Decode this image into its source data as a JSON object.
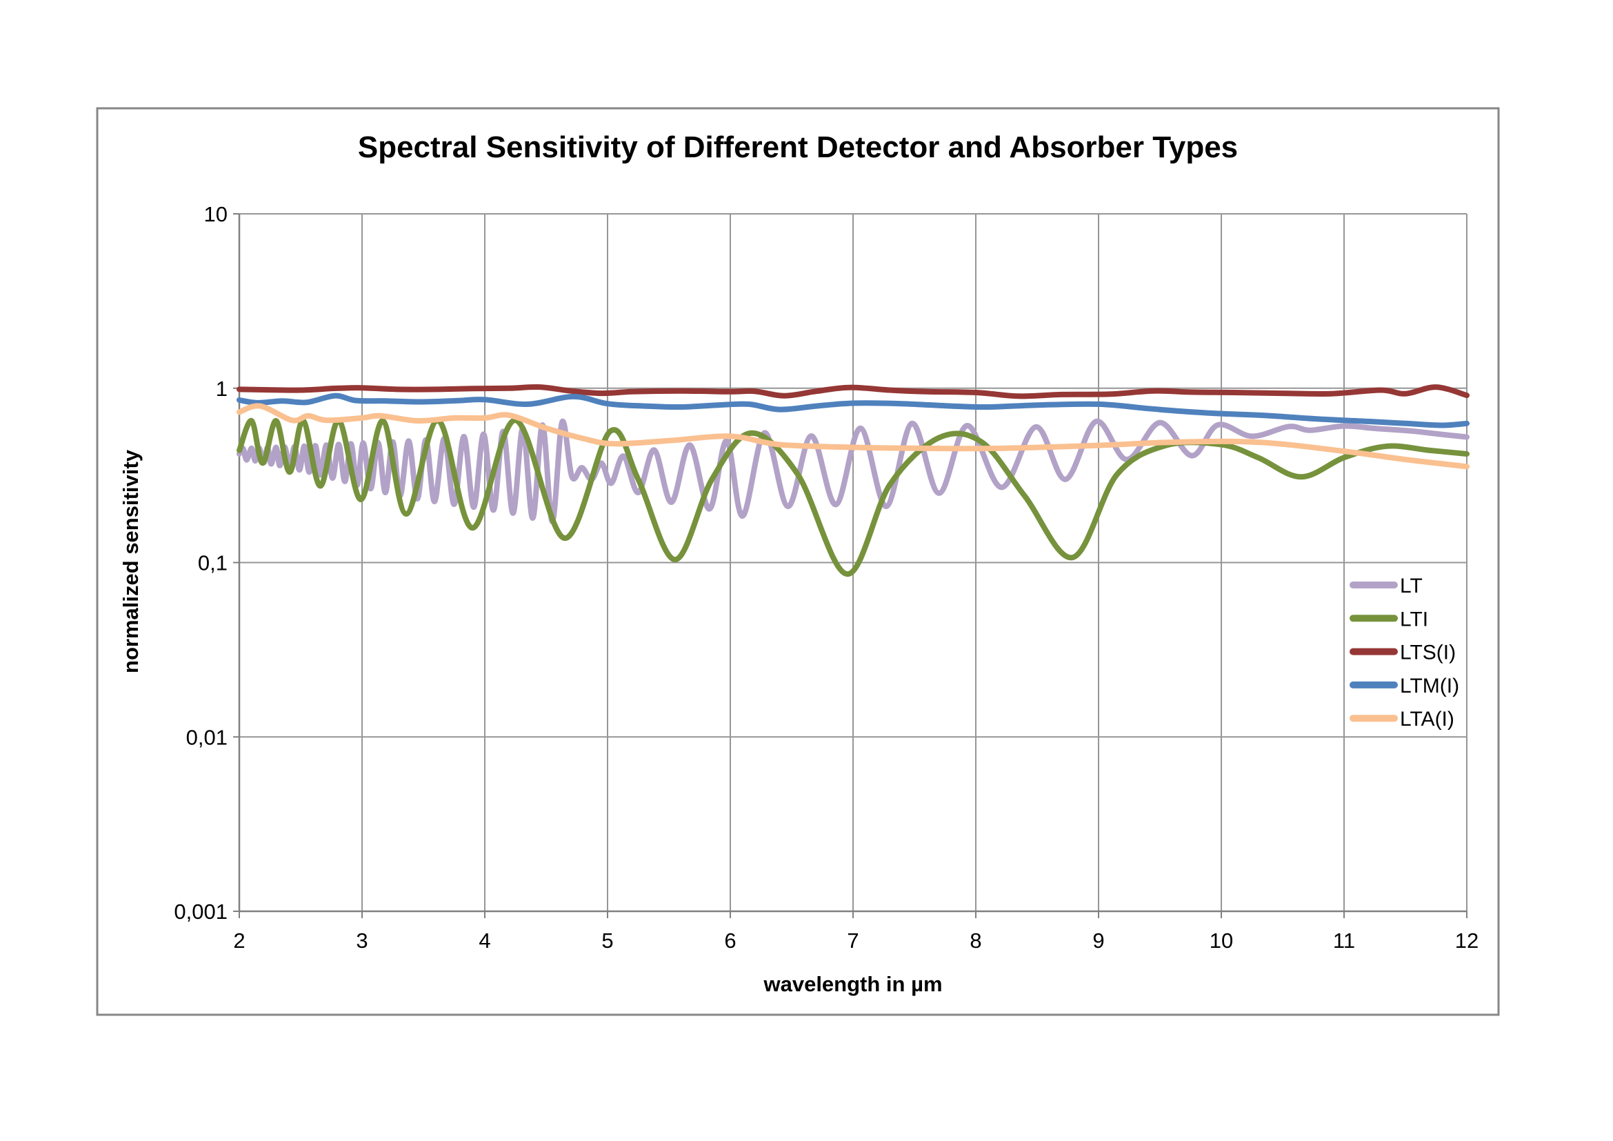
{
  "chart_data": {
    "type": "line",
    "title": "Spectral Sensitivity of Different Detector and Absorber Types",
    "xlabel": "wavelength in µm",
    "ylabel": "normalized sensitivity",
    "grid": true,
    "legend_position": "right-inside",
    "x_axis": {
      "min": 2,
      "max": 12,
      "ticks": [
        {
          "value": 2,
          "label": "2"
        },
        {
          "value": 3,
          "label": "3"
        },
        {
          "value": 4,
          "label": "4"
        },
        {
          "value": 5,
          "label": "5"
        },
        {
          "value": 6,
          "label": "6"
        },
        {
          "value": 7,
          "label": "7"
        },
        {
          "value": 8,
          "label": "8"
        },
        {
          "value": 9,
          "label": "9"
        },
        {
          "value": 10,
          "label": "10"
        },
        {
          "value": 11,
          "label": "11"
        },
        {
          "value": 12,
          "label": "12"
        }
      ]
    },
    "y_axis": {
      "scale": "log",
      "min": 0.001,
      "max": 10,
      "ticks": [
        {
          "value": 10,
          "label": "10"
        },
        {
          "value": 1,
          "label": "1"
        },
        {
          "value": 0.1,
          "label": "0,1"
        },
        {
          "value": 0.01,
          "label": "0,01"
        },
        {
          "value": 0.001,
          "label": "0,001"
        }
      ]
    },
    "colors": {
      "gridline": "#969696",
      "axis": "#808080",
      "border": "#878787",
      "text": "#000000"
    },
    "series": [
      {
        "name": "LT",
        "color": "#B2A2C7",
        "points": [
          [
            2.0,
            0.42
          ],
          [
            2.03,
            0.452
          ],
          [
            2.06,
            0.388
          ],
          [
            2.1,
            0.453
          ],
          [
            2.13,
            0.383
          ],
          [
            2.16,
            0.455
          ],
          [
            2.2,
            0.375
          ],
          [
            2.23,
            0.456
          ],
          [
            2.26,
            0.368
          ],
          [
            2.3,
            0.458
          ],
          [
            2.33,
            0.36
          ],
          [
            2.37,
            0.46
          ],
          [
            2.41,
            0.35
          ],
          [
            2.45,
            0.462
          ],
          [
            2.49,
            0.34
          ],
          [
            2.53,
            0.465
          ],
          [
            2.57,
            0.33
          ],
          [
            2.62,
            0.468
          ],
          [
            2.66,
            0.318
          ],
          [
            2.71,
            0.472
          ],
          [
            2.76,
            0.305
          ],
          [
            2.81,
            0.476
          ],
          [
            2.86,
            0.292
          ],
          [
            2.91,
            0.48
          ],
          [
            2.96,
            0.278
          ],
          [
            3.01,
            0.485
          ],
          [
            3.07,
            0.265
          ],
          [
            3.13,
            0.488
          ],
          [
            3.19,
            0.252
          ],
          [
            3.25,
            0.492
          ],
          [
            3.31,
            0.242
          ],
          [
            3.38,
            0.498
          ],
          [
            3.45,
            0.232
          ],
          [
            3.52,
            0.505
          ],
          [
            3.59,
            0.224
          ],
          [
            3.67,
            0.515
          ],
          [
            3.75,
            0.216
          ],
          [
            3.83,
            0.528
          ],
          [
            3.91,
            0.208
          ],
          [
            3.99,
            0.545
          ],
          [
            4.07,
            0.2
          ],
          [
            4.15,
            0.565
          ],
          [
            4.23,
            0.192
          ],
          [
            4.31,
            0.59
          ],
          [
            4.39,
            0.18
          ],
          [
            4.47,
            0.615
          ],
          [
            4.55,
            0.172
          ],
          [
            4.63,
            0.64
          ],
          [
            4.71,
            0.31
          ],
          [
            4.79,
            0.35
          ],
          [
            4.87,
            0.3
          ],
          [
            4.95,
            0.372
          ],
          [
            5.03,
            0.285
          ],
          [
            5.13,
            0.408
          ],
          [
            5.25,
            0.252
          ],
          [
            5.38,
            0.442
          ],
          [
            5.52,
            0.222
          ],
          [
            5.67,
            0.472
          ],
          [
            5.83,
            0.203
          ],
          [
            5.97,
            0.5
          ],
          [
            6.1,
            0.185
          ],
          [
            6.28,
            0.555
          ],
          [
            6.47,
            0.21
          ],
          [
            6.66,
            0.532
          ],
          [
            6.86,
            0.215
          ],
          [
            7.06,
            0.59
          ],
          [
            7.27,
            0.21
          ],
          [
            7.48,
            0.628
          ],
          [
            7.7,
            0.25
          ],
          [
            7.93,
            0.61
          ],
          [
            8.21,
            0.27
          ],
          [
            8.49,
            0.6
          ],
          [
            8.73,
            0.3
          ],
          [
            8.98,
            0.645
          ],
          [
            9.23,
            0.39
          ],
          [
            9.5,
            0.635
          ],
          [
            9.76,
            0.41
          ],
          [
            9.97,
            0.615
          ],
          [
            10.25,
            0.53
          ],
          [
            10.55,
            0.603
          ],
          [
            10.72,
            0.574
          ],
          [
            11.0,
            0.607
          ],
          [
            11.25,
            0.588
          ],
          [
            11.55,
            0.568
          ],
          [
            11.78,
            0.545
          ],
          [
            12.0,
            0.525
          ]
        ]
      },
      {
        "name": "LTI",
        "color": "#76923C",
        "points": [
          [
            2.0,
            0.44
          ],
          [
            2.1,
            0.65
          ],
          [
            2.19,
            0.372
          ],
          [
            2.3,
            0.65
          ],
          [
            2.41,
            0.33
          ],
          [
            2.52,
            0.652
          ],
          [
            2.66,
            0.275
          ],
          [
            2.81,
            0.652
          ],
          [
            2.99,
            0.23
          ],
          [
            3.17,
            0.65
          ],
          [
            3.36,
            0.19
          ],
          [
            3.62,
            0.652
          ],
          [
            3.9,
            0.158
          ],
          [
            4.25,
            0.655
          ],
          [
            4.65,
            0.138
          ],
          [
            5.02,
            0.565
          ],
          [
            5.25,
            0.3
          ],
          [
            5.55,
            0.104
          ],
          [
            5.85,
            0.3
          ],
          [
            6.17,
            0.553
          ],
          [
            6.55,
            0.32
          ],
          [
            6.95,
            0.086
          ],
          [
            7.3,
            0.28
          ],
          [
            7.7,
            0.52
          ],
          [
            8.05,
            0.49
          ],
          [
            8.4,
            0.24
          ],
          [
            8.79,
            0.107
          ],
          [
            9.15,
            0.32
          ],
          [
            9.55,
            0.47
          ],
          [
            10.0,
            0.475
          ],
          [
            10.3,
            0.4
          ],
          [
            10.65,
            0.31
          ],
          [
            11.0,
            0.4
          ],
          [
            11.35,
            0.465
          ],
          [
            11.7,
            0.44
          ],
          [
            12.0,
            0.42
          ]
        ]
      },
      {
        "name": "LTS(I)",
        "color": "#953735",
        "points": [
          [
            2.0,
            0.985
          ],
          [
            2.2,
            0.98
          ],
          [
            2.5,
            0.975
          ],
          [
            2.8,
            1.0
          ],
          [
            3.0,
            1.005
          ],
          [
            3.3,
            0.985
          ],
          [
            3.6,
            0.985
          ],
          [
            3.9,
            0.995
          ],
          [
            4.2,
            1.0
          ],
          [
            4.45,
            1.015
          ],
          [
            4.7,
            0.965
          ],
          [
            4.95,
            0.935
          ],
          [
            5.2,
            0.955
          ],
          [
            5.6,
            0.965
          ],
          [
            6.0,
            0.955
          ],
          [
            6.2,
            0.96
          ],
          [
            6.44,
            0.905
          ],
          [
            6.7,
            0.96
          ],
          [
            6.97,
            1.01
          ],
          [
            7.3,
            0.975
          ],
          [
            7.6,
            0.955
          ],
          [
            8.0,
            0.945
          ],
          [
            8.35,
            0.9
          ],
          [
            8.7,
            0.92
          ],
          [
            9.1,
            0.925
          ],
          [
            9.45,
            0.965
          ],
          [
            9.75,
            0.95
          ],
          [
            10.1,
            0.945
          ],
          [
            10.5,
            0.935
          ],
          [
            10.9,
            0.93
          ],
          [
            11.3,
            0.975
          ],
          [
            11.5,
            0.93
          ],
          [
            11.75,
            1.015
          ],
          [
            12.0,
            0.91
          ]
        ]
      },
      {
        "name": "LTM(I)",
        "color": "#4F81BD",
        "points": [
          [
            2.0,
            0.855
          ],
          [
            2.15,
            0.825
          ],
          [
            2.35,
            0.845
          ],
          [
            2.55,
            0.83
          ],
          [
            2.78,
            0.905
          ],
          [
            2.95,
            0.85
          ],
          [
            3.2,
            0.845
          ],
          [
            3.5,
            0.835
          ],
          [
            3.8,
            0.85
          ],
          [
            4.0,
            0.86
          ],
          [
            4.35,
            0.81
          ],
          [
            4.72,
            0.895
          ],
          [
            5.0,
            0.815
          ],
          [
            5.3,
            0.79
          ],
          [
            5.6,
            0.78
          ],
          [
            5.9,
            0.8
          ],
          [
            6.15,
            0.81
          ],
          [
            6.4,
            0.755
          ],
          [
            6.7,
            0.79
          ],
          [
            7.0,
            0.82
          ],
          [
            7.4,
            0.815
          ],
          [
            7.8,
            0.79
          ],
          [
            8.1,
            0.78
          ],
          [
            8.5,
            0.8
          ],
          [
            9.0,
            0.81
          ],
          [
            9.4,
            0.765
          ],
          [
            9.7,
            0.735
          ],
          [
            10.0,
            0.715
          ],
          [
            10.4,
            0.695
          ],
          [
            10.8,
            0.665
          ],
          [
            11.2,
            0.645
          ],
          [
            11.5,
            0.628
          ],
          [
            11.8,
            0.613
          ],
          [
            12.0,
            0.628
          ]
        ]
      },
      {
        "name": "LTA(I)",
        "color": "#FAC090",
        "points": [
          [
            2.0,
            0.73
          ],
          [
            2.17,
            0.79
          ],
          [
            2.43,
            0.655
          ],
          [
            2.56,
            0.695
          ],
          [
            2.71,
            0.655
          ],
          [
            3.0,
            0.675
          ],
          [
            3.15,
            0.695
          ],
          [
            3.45,
            0.65
          ],
          [
            3.75,
            0.675
          ],
          [
            4.0,
            0.675
          ],
          [
            4.2,
            0.7
          ],
          [
            4.5,
            0.59
          ],
          [
            4.8,
            0.515
          ],
          [
            5.05,
            0.48
          ],
          [
            5.5,
            0.5
          ],
          [
            6.0,
            0.53
          ],
          [
            6.4,
            0.475
          ],
          [
            7.0,
            0.458
          ],
          [
            7.6,
            0.452
          ],
          [
            8.2,
            0.452
          ],
          [
            9.0,
            0.47
          ],
          [
            9.6,
            0.49
          ],
          [
            10.3,
            0.49
          ],
          [
            11.0,
            0.435
          ],
          [
            11.5,
            0.39
          ],
          [
            12.0,
            0.355
          ]
        ]
      }
    ]
  }
}
